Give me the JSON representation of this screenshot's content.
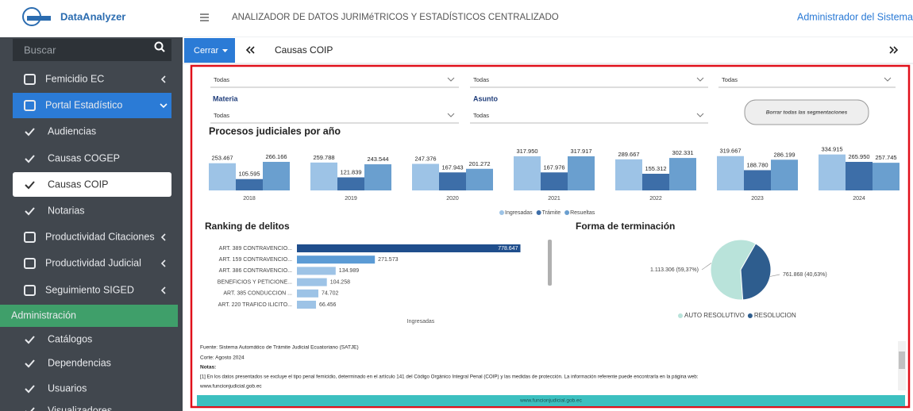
{
  "sidebar": {
    "brand": "DataAnalyzer",
    "search": "Buscar",
    "menu": [
      "Femicidio EC",
      "Portal Estadístico",
      "Audiencias",
      "Causas COGEP",
      "Causas COIP",
      "Notarias",
      "Productividad Citaciones",
      "Productividad Judicial",
      "Seguimiento SIGED",
      "Administración",
      "Catálogos",
      "Dependencias",
      "Usuarios",
      "Visualizadores"
    ]
  },
  "topbar": {
    "title": "ANALIZADOR DE DATOS JURIMéTRICOS Y ESTADÍSTICOS CENTRALIZADO",
    "user": "Administrador del Sistema"
  },
  "tabs": {
    "close": "Cerrar",
    "active": "Causas COIP"
  },
  "filters": {
    "dropdowns": [
      "Todas",
      "Todas",
      "Todas",
      "Todas",
      "Todas"
    ],
    "labels": [
      "Materia",
      "Asunto"
    ],
    "clear": "Borrar todas las segmentaciones"
  },
  "chart_data": [
    {
      "type": "bar",
      "title": "Procesos judiciales por año",
      "categories": [
        "2018",
        "2019",
        "2020",
        "2021",
        "2022",
        "2023",
        "2024"
      ],
      "series": [
        {
          "name": "Ingresadas",
          "color": "#9dc3e6",
          "values": [
            253467,
            259788,
            247376,
            317950,
            289667,
            319667,
            334915
          ],
          "value_labels": [
            "253.467",
            "259.788",
            "247.376",
            "317.950",
            "289.667",
            "319.667",
            "334.915"
          ]
        },
        {
          "name": "Trámite",
          "color": "#3d6ea8",
          "values": [
            105595,
            121839,
            167943,
            167976,
            155312,
            188780,
            265950
          ],
          "value_labels": [
            "105.595",
            "121.839",
            "167.943",
            "167.976",
            "155.312",
            "188.780",
            "265.950"
          ]
        },
        {
          "name": "Resueltas",
          "color": "#6a9fcf",
          "values": [
            266166,
            243544,
            201272,
            317917,
            302331,
            286199,
            257745
          ],
          "value_labels": [
            "266.166",
            "243.544",
            "201.272",
            "317.917",
            "302.331",
            "286.199",
            "257.745"
          ]
        }
      ],
      "ylim": [
        0,
        340000
      ]
    },
    {
      "type": "hbar",
      "title": "Ranking de delitos",
      "categories": [
        "ART. 389 CONTRAVENCIO...",
        "ART. 159 CONTRAVENCIO...",
        "ART. 386 CONTRAVENCIO...",
        "BENEFICIOS Y PETICIONE...",
        "ART. 385 CONDUCCION ...",
        "ART. 220 TRAFICO ILICITO..."
      ],
      "values": [
        778647,
        271573,
        134989,
        104258,
        74702,
        66456
      ],
      "value_labels": [
        "778.647",
        "271.573",
        "134.989",
        "104.258",
        "74.702",
        "66.456"
      ],
      "colors": [
        "#1f4e8c",
        "#5b9bd5",
        "#9dc3e6",
        "#9dc3e6",
        "#9dc3e6",
        "#9dc3e6"
      ],
      "xlabel": "Ingresadas",
      "xlim": [
        0,
        780000
      ]
    },
    {
      "type": "pie",
      "title": "Forma de terminación",
      "categories": [
        "AUTO RESOLUTIVO",
        "RESOLUCION"
      ],
      "values": [
        1113306,
        761868
      ],
      "value_labels": [
        "1.113.306 (59,37%)",
        "761.868 (40,63%)"
      ],
      "colors": [
        "#b9e3da",
        "#2e5d8e"
      ]
    }
  ],
  "notes": {
    "source": "Fuente: Sistema Automático de Trámite Judicial Ecuatoriano (SATJE)",
    "cut": "Corte: Agosto 2024",
    "heading": "Notas:",
    "lines": [
      "[1] En los datos presentados se excluye el tipo penal femicidio, determinado en el artículo 141 del Código Orgánico Integral Penal (COIP) y las medidas de protección. La información referente puede encontrarla en la página web:",
      "www.funcionjudicial.gob.ec"
    ]
  },
  "footer": "www.funcionjudicial.gob.ec"
}
